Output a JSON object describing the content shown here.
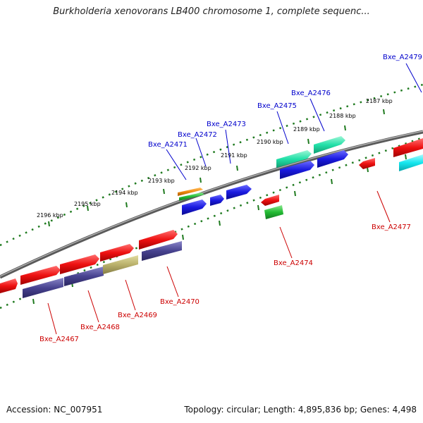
{
  "title": "Burkholderia xenovorans LB400 chromosome 1, complete sequenc...",
  "footer": {
    "accession": "Accession: NC_007951",
    "stats": "Topology: circular; Length: 4,895,836 bp; Genes: 4,498"
  },
  "kbp_labels": [
    "2196 kbp",
    "2195 kbp",
    "2194 kbp",
    "2193 kbp",
    "2192 kbp",
    "2191 kbp",
    "2190 kbp",
    "2189 kbp",
    "2188 kbp",
    "2187 kbp"
  ],
  "genes_top": [
    "Bxe_A2471",
    "Bxe_A2472",
    "Bxe_A2473",
    "Bxe_A2475",
    "Bxe_A2476",
    "Bxe_A2479"
  ],
  "genes_bottom": [
    "Bxe_A2467",
    "Bxe_A2468",
    "Bxe_A2469",
    "Bxe_A2470",
    "Bxe_A2474",
    "Bxe_A2477"
  ],
  "colors": {
    "red": "#ee1111",
    "blue": "#1a1ae0",
    "navy": "#47428f",
    "khaki": "#b9b06a",
    "cyan": "#14e6ee",
    "mint": "#22e0a8",
    "green": "#22bb33",
    "orange": "#f08a10",
    "tick_green": "#1f7a1f",
    "backbone": "#7a7a7a",
    "label_top": "#0000cc",
    "label_bottom": "#cc0000"
  }
}
